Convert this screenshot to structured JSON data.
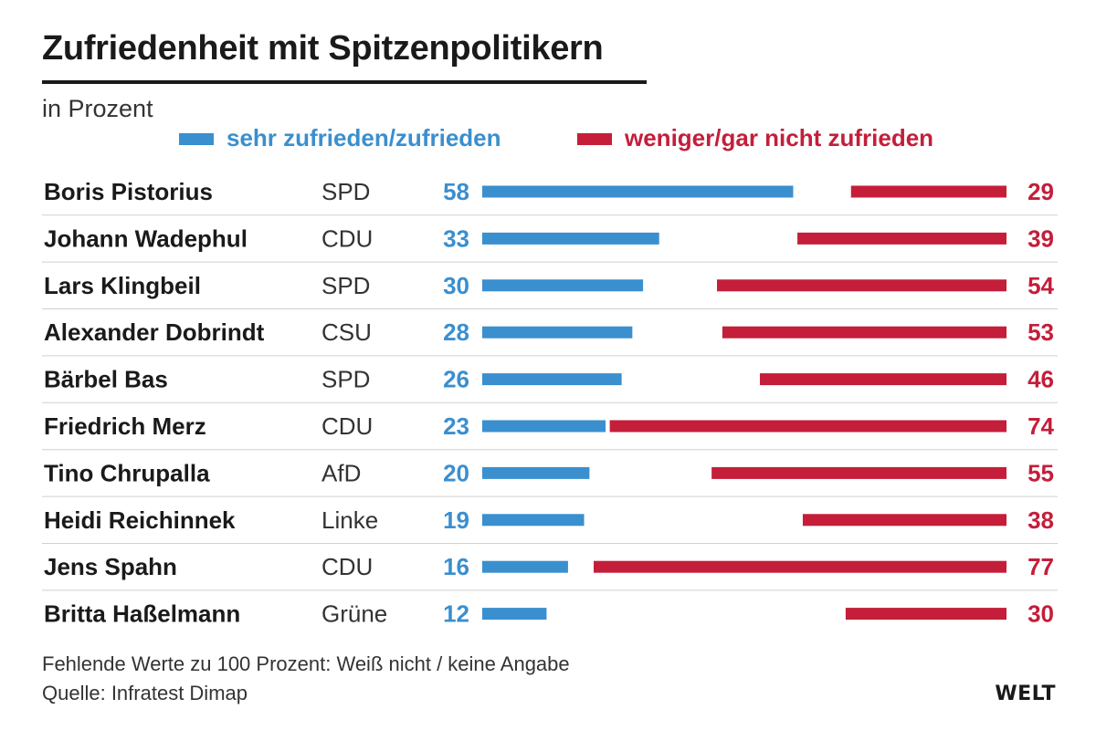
{
  "header": {
    "title": "Zufriedenheit mit Spitzenpolitikern",
    "subtitle": "in Prozent"
  },
  "legend": {
    "positive": "sehr zufrieden/zufrieden",
    "negative": "weniger/gar nicht zufrieden"
  },
  "colors": {
    "positive": "#3a8fcf",
    "negative": "#c41e3a",
    "text": "#1a1a1a"
  },
  "chart_data": {
    "type": "bar",
    "title": "Zufriedenheit mit Spitzenpolitikern",
    "subtitle": "in Prozent",
    "categories": [
      "Boris Pistorius",
      "Johann Wadephul",
      "Lars Klingbeil",
      "Alexander Dobrindt",
      "Bärbel Bas",
      "Friedrich Merz",
      "Tino Chrupalla",
      "Heidi Reichinnek",
      "Jens Spahn",
      "Britta Haßelmann"
    ],
    "parties": [
      "SPD",
      "CDU",
      "SPD",
      "CSU",
      "SPD",
      "CDU",
      "AfD",
      "Linke",
      "CDU",
      "Grüne"
    ],
    "series": [
      {
        "name": "sehr zufrieden/zufrieden",
        "values": [
          58,
          33,
          30,
          28,
          26,
          23,
          20,
          19,
          16,
          12
        ]
      },
      {
        "name": "weniger/gar nicht zufrieden",
        "values": [
          29,
          39,
          54,
          53,
          46,
          74,
          55,
          38,
          77,
          30
        ]
      }
    ],
    "ylim": [
      0,
      100
    ]
  },
  "footer": {
    "note": "Fehlende Werte zu 100 Prozent: Weiß nicht / keine Angabe",
    "source": "Quelle: Infratest Dimap",
    "brand": "WELT"
  }
}
